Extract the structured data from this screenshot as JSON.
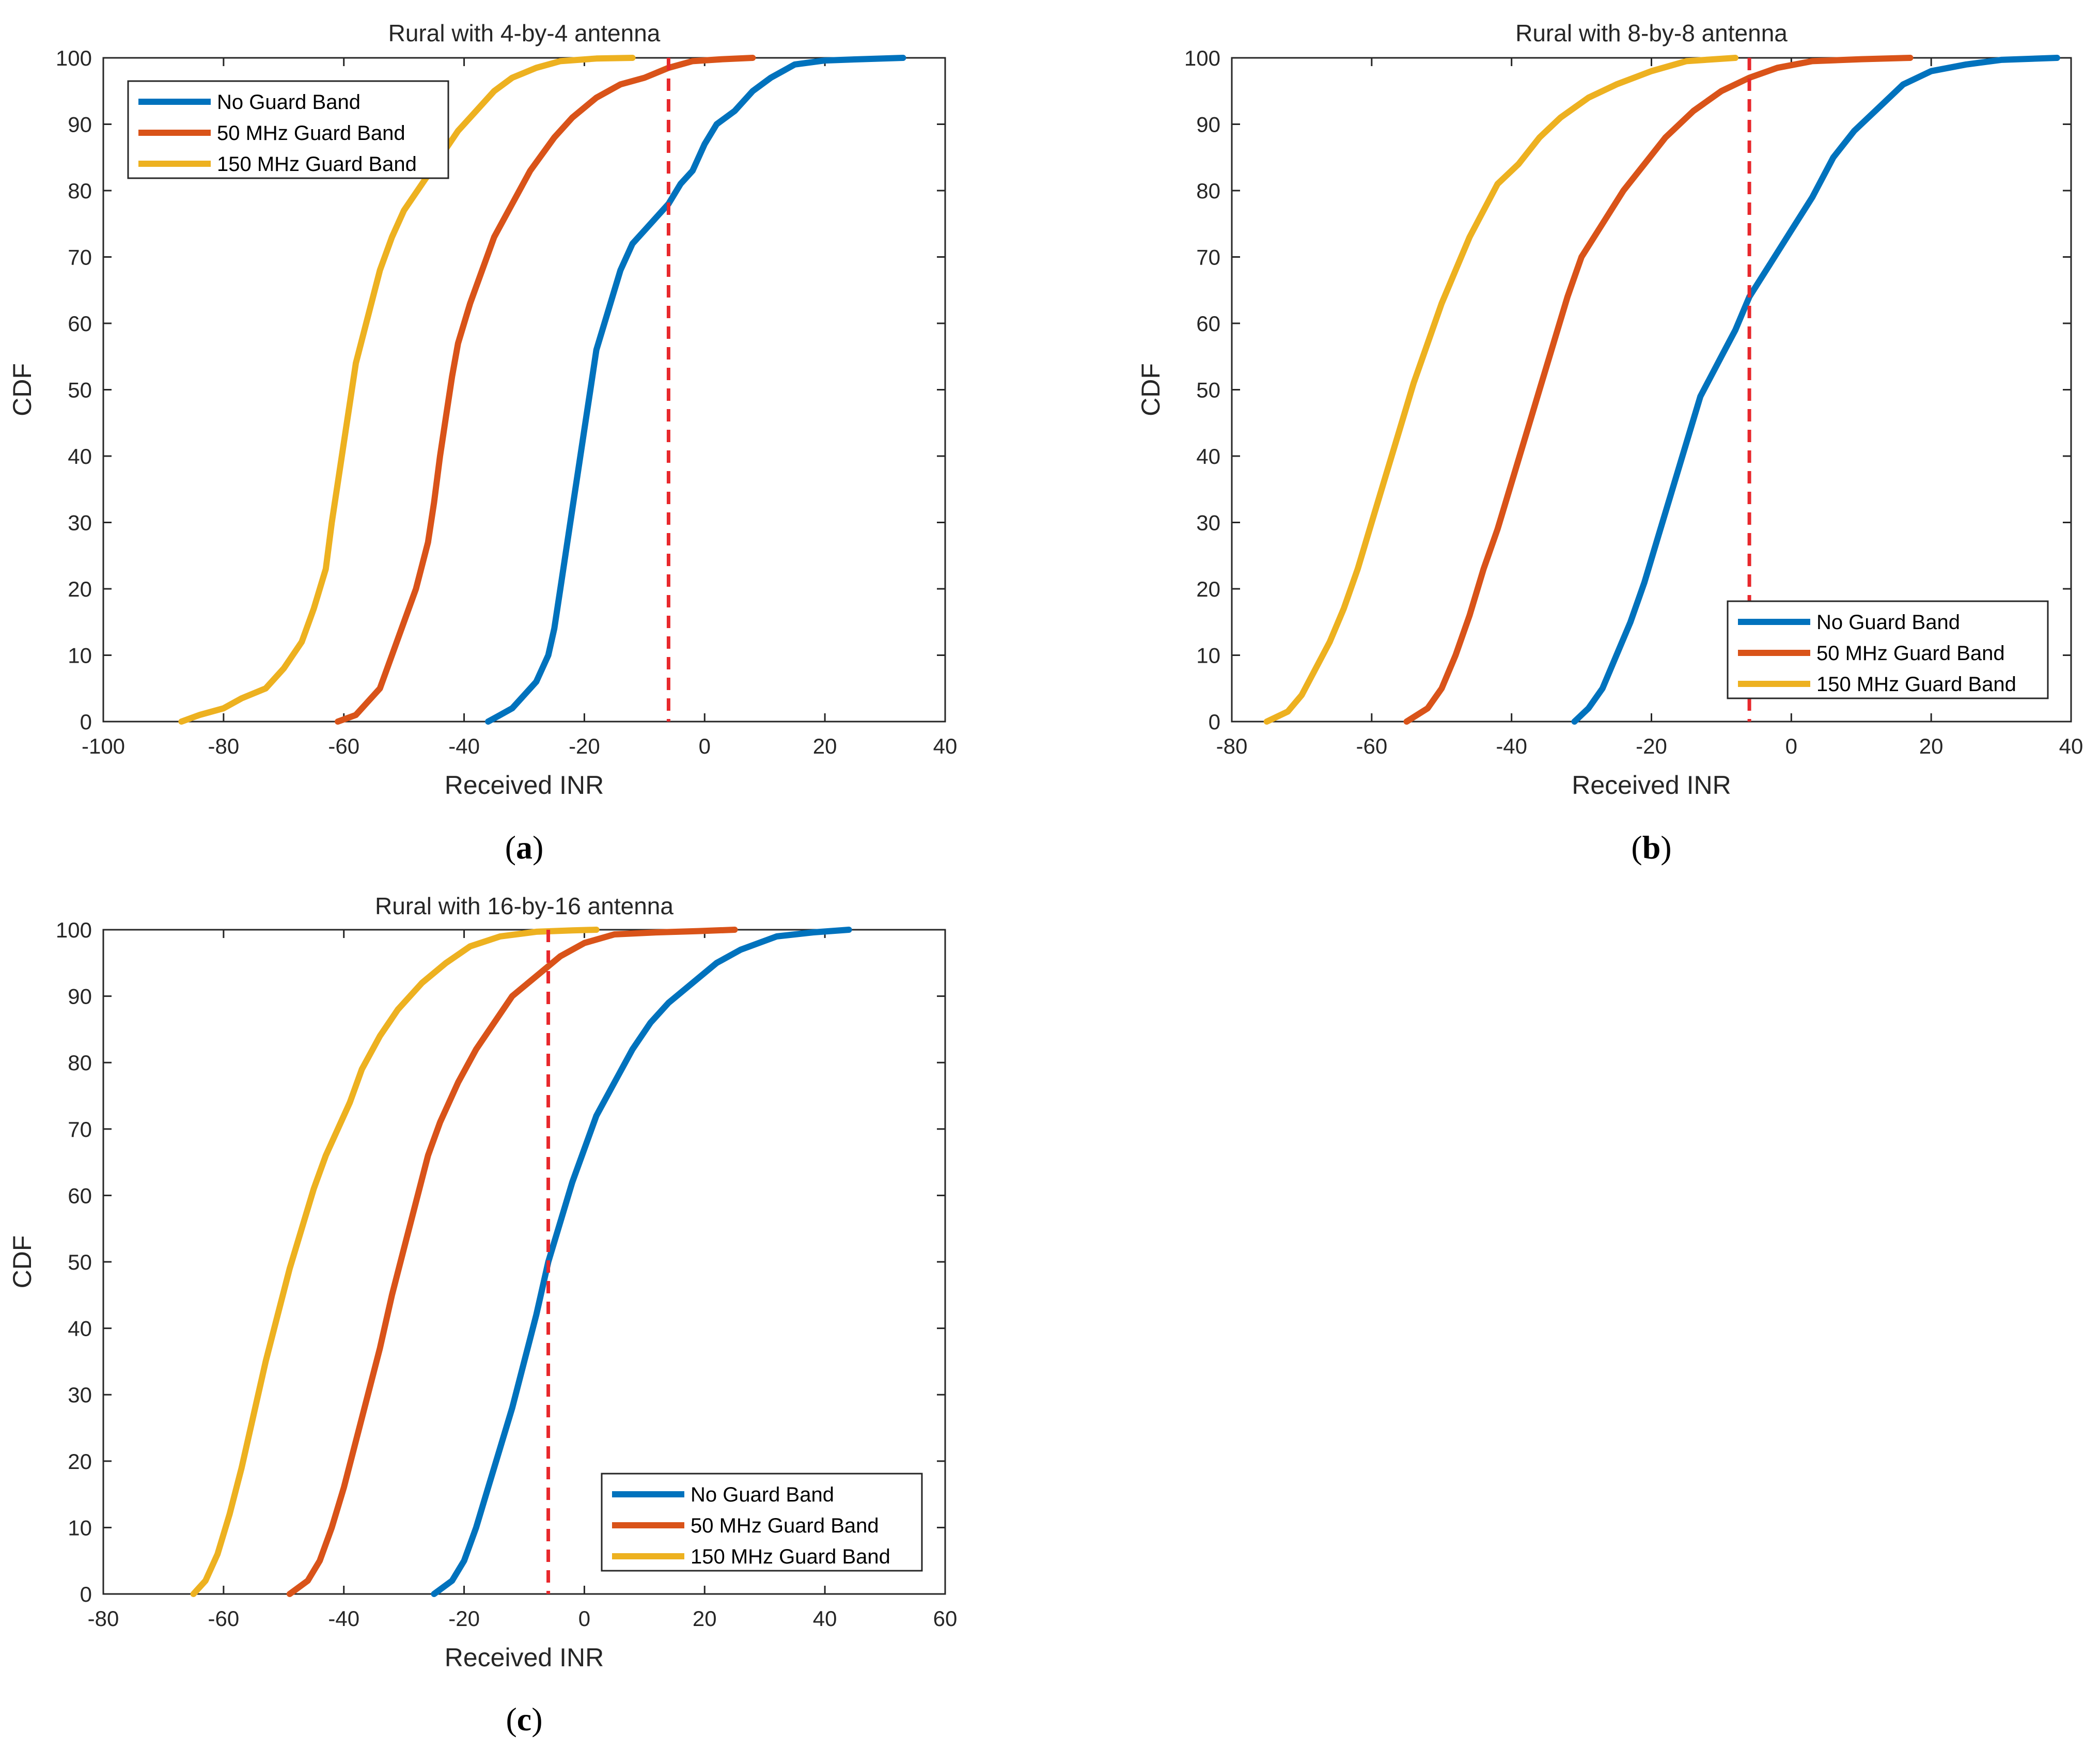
{
  "chart_data": [
    {
      "type": "line",
      "title": "Rural with 4-by-4 antenna",
      "xlabel": "Received INR",
      "ylabel": "CDF",
      "caption": "a",
      "xlim": [
        -100,
        40
      ],
      "ylim": [
        0,
        100
      ],
      "xticks": [
        "-100",
        "-80",
        "-60",
        "-40",
        "-20",
        "0",
        "20",
        "40"
      ],
      "yticks": [
        "0",
        "10",
        "20",
        "30",
        "40",
        "50",
        "60",
        "70",
        "80",
        "90",
        "100"
      ],
      "threshold_x": -6,
      "legend_position": "top-left",
      "series": [
        {
          "name": "No Guard Band",
          "color": "#0072BD",
          "points": [
            [
              -36,
              0
            ],
            [
              -34,
              1
            ],
            [
              -32,
              2
            ],
            [
              -30,
              4
            ],
            [
              -28,
              6
            ],
            [
              -26,
              10
            ],
            [
              -25,
              14
            ],
            [
              -24,
              20
            ],
            [
              -23,
              26
            ],
            [
              -22,
              32
            ],
            [
              -21,
              38
            ],
            [
              -20,
              44
            ],
            [
              -19,
              50
            ],
            [
              -18,
              56
            ],
            [
              -16,
              62
            ],
            [
              -14,
              68
            ],
            [
              -12,
              72
            ],
            [
              -10,
              74
            ],
            [
              -8,
              76
            ],
            [
              -6,
              78
            ],
            [
              -4,
              81
            ],
            [
              -2,
              83
            ],
            [
              0,
              87
            ],
            [
              2,
              90
            ],
            [
              5,
              92
            ],
            [
              8,
              95
            ],
            [
              11,
              97
            ],
            [
              15,
              99
            ],
            [
              20,
              99.6
            ],
            [
              26,
              99.8
            ],
            [
              33,
              100
            ]
          ]
        },
        {
          "name": "50 MHz Guard Band",
          "color": "#D95319",
          "points": [
            [
              -61,
              0
            ],
            [
              -58,
              1
            ],
            [
              -56,
              3
            ],
            [
              -54,
              5
            ],
            [
              -52,
              10
            ],
            [
              -50,
              15
            ],
            [
              -48,
              20
            ],
            [
              -46,
              27
            ],
            [
              -45,
              33
            ],
            [
              -44,
              40
            ],
            [
              -43,
              46
            ],
            [
              -42,
              52
            ],
            [
              -41,
              57
            ],
            [
              -39,
              63
            ],
            [
              -37,
              68
            ],
            [
              -35,
              73
            ],
            [
              -32,
              78
            ],
            [
              -29,
              83
            ],
            [
              -25,
              88
            ],
            [
              -22,
              91
            ],
            [
              -18,
              94
            ],
            [
              -14,
              96
            ],
            [
              -10,
              97
            ],
            [
              -6,
              98.5
            ],
            [
              -2,
              99.5
            ],
            [
              3,
              99.8
            ],
            [
              8,
              100
            ]
          ]
        },
        {
          "name": "150 MHz Guard Band",
          "color": "#EDB120",
          "points": [
            [
              -87,
              0
            ],
            [
              -84,
              1
            ],
            [
              -80,
              2
            ],
            [
              -77,
              3.5
            ],
            [
              -73,
              5
            ],
            [
              -70,
              8
            ],
            [
              -67,
              12
            ],
            [
              -65,
              17
            ],
            [
              -63,
              23
            ],
            [
              -62,
              30
            ],
            [
              -61,
              36
            ],
            [
              -60,
              42
            ],
            [
              -59,
              48
            ],
            [
              -58,
              54
            ],
            [
              -56,
              61
            ],
            [
              -54,
              68
            ],
            [
              -52,
              73
            ],
            [
              -50,
              77
            ],
            [
              -47,
              81
            ],
            [
              -44,
              85
            ],
            [
              -41,
              89
            ],
            [
              -38,
              92
            ],
            [
              -35,
              95
            ],
            [
              -32,
              97
            ],
            [
              -28,
              98.5
            ],
            [
              -24,
              99.5
            ],
            [
              -18,
              99.9
            ],
            [
              -12,
              100
            ]
          ]
        }
      ]
    },
    {
      "type": "line",
      "title": "Rural with 8-by-8 antenna",
      "xlabel": "Received INR",
      "ylabel": "CDF",
      "caption": "b",
      "xlim": [
        -80,
        40
      ],
      "ylim": [
        0,
        100
      ],
      "xticks": [
        "-80",
        "-60",
        "-40",
        "-20",
        "0",
        "20",
        "40"
      ],
      "yticks": [
        "0",
        "10",
        "20",
        "30",
        "40",
        "50",
        "60",
        "70",
        "80",
        "90",
        "100"
      ],
      "threshold_x": -6,
      "legend_position": "bottom-right",
      "series": [
        {
          "name": "No Guard Band",
          "color": "#0072BD",
          "points": [
            [
              -31,
              0
            ],
            [
              -29,
              2
            ],
            [
              -27,
              5
            ],
            [
              -25,
              10
            ],
            [
              -23,
              15
            ],
            [
              -21,
              21
            ],
            [
              -19,
              28
            ],
            [
              -17,
              35
            ],
            [
              -15,
              42
            ],
            [
              -13,
              49
            ],
            [
              -10,
              55
            ],
            [
              -8,
              59
            ],
            [
              -6,
              64
            ],
            [
              -3,
              69
            ],
            [
              0,
              74
            ],
            [
              3,
              79
            ],
            [
              6,
              85
            ],
            [
              9,
              89
            ],
            [
              13,
              93
            ],
            [
              16,
              96
            ],
            [
              20,
              98
            ],
            [
              25,
              99
            ],
            [
              30,
              99.7
            ],
            [
              38,
              100
            ]
          ]
        },
        {
          "name": "50 MHz Guard Band",
          "color": "#D95319",
          "points": [
            [
              -55,
              0
            ],
            [
              -52,
              2
            ],
            [
              -50,
              5
            ],
            [
              -48,
              10
            ],
            [
              -46,
              16
            ],
            [
              -44,
              23
            ],
            [
              -42,
              29
            ],
            [
              -40,
              36
            ],
            [
              -38,
              43
            ],
            [
              -36,
              50
            ],
            [
              -34,
              57
            ],
            [
              -32,
              64
            ],
            [
              -30,
              70
            ],
            [
              -27,
              75
            ],
            [
              -24,
              80
            ],
            [
              -21,
              84
            ],
            [
              -18,
              88
            ],
            [
              -14,
              92
            ],
            [
              -10,
              95
            ],
            [
              -6,
              97
            ],
            [
              -2,
              98.5
            ],
            [
              3,
              99.5
            ],
            [
              10,
              99.8
            ],
            [
              17,
              100
            ]
          ]
        },
        {
          "name": "150 MHz Guard Band",
          "color": "#EDB120",
          "points": [
            [
              -75,
              0
            ],
            [
              -72,
              1.5
            ],
            [
              -70,
              4
            ],
            [
              -68,
              8
            ],
            [
              -66,
              12
            ],
            [
              -64,
              17
            ],
            [
              -62,
              23
            ],
            [
              -60,
              30
            ],
            [
              -58,
              37
            ],
            [
              -56,
              44
            ],
            [
              -54,
              51
            ],
            [
              -52,
              57
            ],
            [
              -50,
              63
            ],
            [
              -48,
              68
            ],
            [
              -46,
              73
            ],
            [
              -44,
              77
            ],
            [
              -42,
              81
            ],
            [
              -39,
              84
            ],
            [
              -36,
              88
            ],
            [
              -33,
              91
            ],
            [
              -29,
              94
            ],
            [
              -25,
              96
            ],
            [
              -20,
              98
            ],
            [
              -15,
              99.5
            ],
            [
              -8,
              100
            ]
          ]
        }
      ]
    },
    {
      "type": "line",
      "title": "Rural with 16-by-16 antenna",
      "xlabel": "Received INR",
      "ylabel": "CDF",
      "caption": "c",
      "xlim": [
        -80,
        60
      ],
      "ylim": [
        0,
        100
      ],
      "xticks": [
        "-80",
        "-60",
        "-40",
        "-20",
        "0",
        "20",
        "40",
        "60"
      ],
      "yticks": [
        "0",
        "10",
        "20",
        "30",
        "40",
        "50",
        "60",
        "70",
        "80",
        "90",
        "100"
      ],
      "threshold_x": -6,
      "legend_position": "bottom-right",
      "series": [
        {
          "name": "No Guard Band",
          "color": "#0072BD",
          "points": [
            [
              -25,
              0
            ],
            [
              -22,
              2
            ],
            [
              -20,
              5
            ],
            [
              -18,
              10
            ],
            [
              -16,
              16
            ],
            [
              -14,
              22
            ],
            [
              -12,
              28
            ],
            [
              -10,
              35
            ],
            [
              -8,
              42
            ],
            [
              -6,
              50
            ],
            [
              -4,
              56
            ],
            [
              -2,
              62
            ],
            [
              0,
              67
            ],
            [
              2,
              72
            ],
            [
              5,
              77
            ],
            [
              8,
              82
            ],
            [
              11,
              86
            ],
            [
              14,
              89
            ],
            [
              18,
              92
            ],
            [
              22,
              95
            ],
            [
              26,
              97
            ],
            [
              32,
              99
            ],
            [
              38,
              99.6
            ],
            [
              44,
              100
            ]
          ]
        },
        {
          "name": "50 MHz Guard Band",
          "color": "#D95319",
          "points": [
            [
              -49,
              0
            ],
            [
              -46,
              2
            ],
            [
              -44,
              5
            ],
            [
              -42,
              10
            ],
            [
              -40,
              16
            ],
            [
              -38,
              23
            ],
            [
              -36,
              30
            ],
            [
              -34,
              37
            ],
            [
              -32,
              45
            ],
            [
              -30,
              52
            ],
            [
              -28,
              59
            ],
            [
              -26,
              66
            ],
            [
              -24,
              71
            ],
            [
              -21,
              77
            ],
            [
              -18,
              82
            ],
            [
              -15,
              86
            ],
            [
              -12,
              90
            ],
            [
              -8,
              93
            ],
            [
              -4,
              96
            ],
            [
              0,
              98
            ],
            [
              5,
              99.3
            ],
            [
              12,
              99.6
            ],
            [
              19,
              99.8
            ],
            [
              25,
              100
            ]
          ]
        },
        {
          "name": "150 MHz Guard Band",
          "color": "#EDB120",
          "points": [
            [
              -65,
              0
            ],
            [
              -63,
              2
            ],
            [
              -61,
              6
            ],
            [
              -59,
              12
            ],
            [
              -57,
              19
            ],
            [
              -55,
              27
            ],
            [
              -53,
              35
            ],
            [
              -51,
              42
            ],
            [
              -49,
              49
            ],
            [
              -47,
              55
            ],
            [
              -45,
              61
            ],
            [
              -43,
              66
            ],
            [
              -41,
              70
            ],
            [
              -39,
              74
            ],
            [
              -37,
              79
            ],
            [
              -34,
              84
            ],
            [
              -31,
              88
            ],
            [
              -27,
              92
            ],
            [
              -23,
              95
            ],
            [
              -19,
              97.5
            ],
            [
              -14,
              99
            ],
            [
              -8,
              99.7
            ],
            [
              -2,
              99.9
            ],
            [
              2,
              100
            ]
          ]
        }
      ]
    }
  ]
}
